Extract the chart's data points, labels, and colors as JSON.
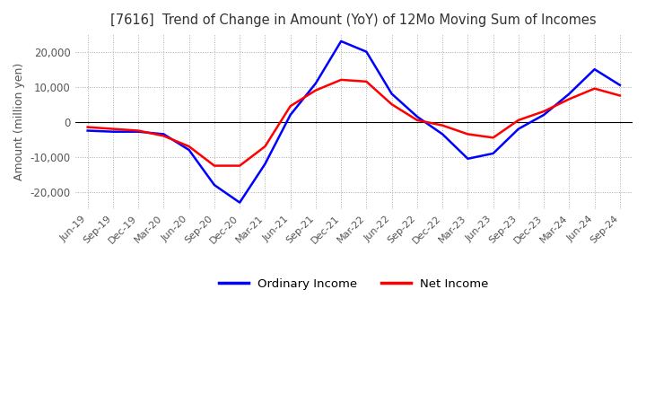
{
  "title": "[7616]  Trend of Change in Amount (YoY) of 12Mo Moving Sum of Incomes",
  "ylabel": "Amount (million yen)",
  "xlabels": [
    "Jun-19",
    "Sep-19",
    "Dec-19",
    "Mar-20",
    "Jun-20",
    "Sep-20",
    "Dec-20",
    "Mar-21",
    "Jun-21",
    "Sep-21",
    "Dec-21",
    "Mar-22",
    "Jun-22",
    "Sep-22",
    "Dec-22",
    "Mar-23",
    "Jun-23",
    "Sep-23",
    "Dec-23",
    "Mar-24",
    "Jun-24",
    "Sep-24"
  ],
  "ordinary_income": [
    -2500,
    -2800,
    -2800,
    -3500,
    -8000,
    -18000,
    -23000,
    -12000,
    2000,
    11000,
    23000,
    20000,
    8000,
    1500,
    -3500,
    -10500,
    -9000,
    -2000,
    2000,
    8000,
    15000,
    10500
  ],
  "net_income": [
    -1500,
    -2000,
    -2500,
    -4000,
    -7000,
    -12500,
    -12500,
    -7000,
    4500,
    9000,
    12000,
    11500,
    5000,
    500,
    -1000,
    -3500,
    -4500,
    500,
    3000,
    6500,
    9500,
    7500
  ],
  "ylim": [
    -25000,
    25000
  ],
  "yticks": [
    -20000,
    -10000,
    0,
    10000,
    20000
  ],
  "ordinary_color": "#0000ff",
  "net_color": "#ff0000",
  "background_color": "#ffffff",
  "grid_color": "#aaaaaa",
  "title_color": "#333333",
  "legend_labels": [
    "Ordinary Income",
    "Net Income"
  ],
  "line_width": 1.8
}
